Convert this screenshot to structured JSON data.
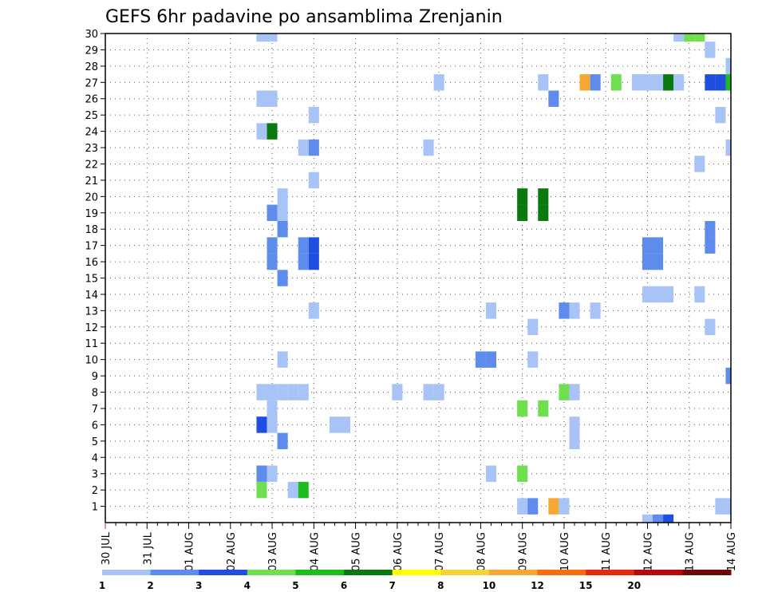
{
  "chart_data": {
    "type": "heatmap",
    "title": "GEFS 6hr padavine po ansamblima Zrenjanin",
    "xlabel": "",
    "ylabel": "",
    "x_ticks": [
      "30 JUL",
      "31 JUL",
      "01 AUG",
      "02 AUG",
      "03 AUG",
      "04 AUG",
      "05 AUG",
      "06 AUG",
      "07 AUG",
      "08 AUG",
      "09 AUG",
      "10 AUG",
      "11 AUG",
      "12 AUG",
      "13 AUG",
      "14 AUG"
    ],
    "x_range_days": [
      0,
      15
    ],
    "x_step_days": 0.25,
    "y_ticks": [
      1,
      2,
      3,
      4,
      5,
      6,
      7,
      8,
      9,
      10,
      11,
      12,
      13,
      14,
      15,
      16,
      17,
      18,
      19,
      20,
      21,
      22,
      23,
      24,
      25,
      26,
      27,
      28,
      29,
      30
    ],
    "y_range": [
      0,
      30
    ],
    "grid": true,
    "colorbar": {
      "position": "bottom",
      "levels": [
        "1",
        "2",
        "3",
        "4",
        "5",
        "6",
        "7",
        "8",
        "10",
        "12",
        "15",
        "20"
      ],
      "colors": [
        "#a8c3f5",
        "#5e8cec",
        "#1f4fe0",
        "#6fdf4f",
        "#1dbb1d",
        "#0a7a10",
        "#ffff00",
        "#f7d434",
        "#f7a832",
        "#f76d12",
        "#e42a0a",
        "#b40a0a",
        "#6a0808"
      ]
    },
    "cells": [
      {
        "d": 3.75,
        "m": 30,
        "c": 1
      },
      {
        "d": 4.0,
        "m": 30,
        "c": 1
      },
      {
        "d": 13.75,
        "m": 30,
        "c": 1
      },
      {
        "d": 14.0,
        "m": 30,
        "c": 4
      },
      {
        "d": 14.25,
        "m": 30,
        "c": 4
      },
      {
        "d": 14.5,
        "m": 29,
        "c": 1
      },
      {
        "d": 15.0,
        "m": 28,
        "c": 1
      },
      {
        "d": 8.0,
        "m": 27,
        "c": 1
      },
      {
        "d": 10.5,
        "m": 27,
        "c": 1
      },
      {
        "d": 11.5,
        "m": 27,
        "c": 9
      },
      {
        "d": 11.75,
        "m": 27,
        "c": 2
      },
      {
        "d": 12.25,
        "m": 27,
        "c": 4
      },
      {
        "d": 12.75,
        "m": 27,
        "c": 1
      },
      {
        "d": 13.0,
        "m": 27,
        "c": 1
      },
      {
        "d": 13.25,
        "m": 27,
        "c": 1
      },
      {
        "d": 13.5,
        "m": 27,
        "c": 6
      },
      {
        "d": 13.75,
        "m": 27,
        "c": 1
      },
      {
        "d": 14.5,
        "m": 27,
        "c": 3
      },
      {
        "d": 14.75,
        "m": 27,
        "c": 3
      },
      {
        "d": 15.0,
        "m": 27,
        "c": 5
      },
      {
        "d": 3.75,
        "m": 26,
        "c": 1
      },
      {
        "d": 4.0,
        "m": 26,
        "c": 1
      },
      {
        "d": 10.75,
        "m": 26,
        "c": 2
      },
      {
        "d": 5.0,
        "m": 25,
        "c": 1
      },
      {
        "d": 14.75,
        "m": 25,
        "c": 1
      },
      {
        "d": 3.75,
        "m": 24,
        "c": 1
      },
      {
        "d": 4.0,
        "m": 24,
        "c": 6
      },
      {
        "d": 4.75,
        "m": 23,
        "c": 1
      },
      {
        "d": 5.0,
        "m": 23,
        "c": 2
      },
      {
        "d": 7.75,
        "m": 23,
        "c": 1
      },
      {
        "d": 15.0,
        "m": 23,
        "c": 1
      },
      {
        "d": 14.25,
        "m": 22,
        "c": 1
      },
      {
        "d": 5.0,
        "m": 21,
        "c": 1
      },
      {
        "d": 4.25,
        "m": 20,
        "c": 1
      },
      {
        "d": 10.0,
        "m": 20,
        "c": 6
      },
      {
        "d": 10.5,
        "m": 20,
        "c": 6
      },
      {
        "d": 4.0,
        "m": 19,
        "c": 2
      },
      {
        "d": 4.25,
        "m": 19,
        "c": 1
      },
      {
        "d": 10.0,
        "m": 19,
        "c": 6
      },
      {
        "d": 10.5,
        "m": 19,
        "c": 6
      },
      {
        "d": 4.25,
        "m": 18,
        "c": 2
      },
      {
        "d": 14.5,
        "m": 18,
        "c": 2
      },
      {
        "d": 4.0,
        "m": 17,
        "c": 2
      },
      {
        "d": 4.75,
        "m": 17,
        "c": 2
      },
      {
        "d": 5.0,
        "m": 17,
        "c": 3
      },
      {
        "d": 13.0,
        "m": 17,
        "c": 2
      },
      {
        "d": 13.25,
        "m": 17,
        "c": 2
      },
      {
        "d": 14.5,
        "m": 17,
        "c": 2
      },
      {
        "d": 4.0,
        "m": 16,
        "c": 2
      },
      {
        "d": 4.75,
        "m": 16,
        "c": 2
      },
      {
        "d": 5.0,
        "m": 16,
        "c": 3
      },
      {
        "d": 13.0,
        "m": 16,
        "c": 2
      },
      {
        "d": 13.25,
        "m": 16,
        "c": 2
      },
      {
        "d": 4.25,
        "m": 15,
        "c": 2
      },
      {
        "d": 13.0,
        "m": 14,
        "c": 1
      },
      {
        "d": 13.25,
        "m": 14,
        "c": 1
      },
      {
        "d": 13.5,
        "m": 14,
        "c": 1
      },
      {
        "d": 14.25,
        "m": 14,
        "c": 1
      },
      {
        "d": 5.0,
        "m": 13,
        "c": 1
      },
      {
        "d": 9.25,
        "m": 13,
        "c": 1
      },
      {
        "d": 11.0,
        "m": 13,
        "c": 2
      },
      {
        "d": 11.25,
        "m": 13,
        "c": 1
      },
      {
        "d": 11.75,
        "m": 13,
        "c": 1
      },
      {
        "d": 10.25,
        "m": 12,
        "c": 1
      },
      {
        "d": 14.5,
        "m": 12,
        "c": 1
      },
      {
        "d": 4.25,
        "m": 10,
        "c": 1
      },
      {
        "d": 9.0,
        "m": 10,
        "c": 2
      },
      {
        "d": 9.25,
        "m": 10,
        "c": 2
      },
      {
        "d": 10.25,
        "m": 10,
        "c": 1
      },
      {
        "d": 15.0,
        "m": 9,
        "c": 2
      },
      {
        "d": 3.75,
        "m": 8,
        "c": 1
      },
      {
        "d": 4.0,
        "m": 8,
        "c": 1
      },
      {
        "d": 4.25,
        "m": 8,
        "c": 1
      },
      {
        "d": 4.5,
        "m": 8,
        "c": 1
      },
      {
        "d": 4.75,
        "m": 8,
        "c": 1
      },
      {
        "d": 7.0,
        "m": 8,
        "c": 1
      },
      {
        "d": 7.75,
        "m": 8,
        "c": 1
      },
      {
        "d": 8.0,
        "m": 8,
        "c": 1
      },
      {
        "d": 11.0,
        "m": 8,
        "c": 4
      },
      {
        "d": 11.25,
        "m": 8,
        "c": 1
      },
      {
        "d": 4.0,
        "m": 7,
        "c": 1
      },
      {
        "d": 10.0,
        "m": 7,
        "c": 4
      },
      {
        "d": 10.5,
        "m": 7,
        "c": 4
      },
      {
        "d": 3.75,
        "m": 6,
        "c": 3
      },
      {
        "d": 4.0,
        "m": 6,
        "c": 1
      },
      {
        "d": 5.5,
        "m": 6,
        "c": 1
      },
      {
        "d": 5.75,
        "m": 6,
        "c": 1
      },
      {
        "d": 11.25,
        "m": 6,
        "c": 1
      },
      {
        "d": 4.25,
        "m": 5,
        "c": 2
      },
      {
        "d": 11.25,
        "m": 5,
        "c": 1
      },
      {
        "d": 3.75,
        "m": 3,
        "c": 2
      },
      {
        "d": 4.0,
        "m": 3,
        "c": 1
      },
      {
        "d": 9.25,
        "m": 3,
        "c": 1
      },
      {
        "d": 10.0,
        "m": 3,
        "c": 4
      },
      {
        "d": 3.75,
        "m": 2,
        "c": 4
      },
      {
        "d": 4.5,
        "m": 2,
        "c": 1
      },
      {
        "d": 4.75,
        "m": 2,
        "c": 5
      },
      {
        "d": 10.0,
        "m": 1,
        "c": 1
      },
      {
        "d": 10.25,
        "m": 1,
        "c": 2
      },
      {
        "d": 10.75,
        "m": 1,
        "c": 9
      },
      {
        "d": 11.0,
        "m": 1,
        "c": 1
      },
      {
        "d": 14.75,
        "m": 1,
        "c": 1
      },
      {
        "d": 15.0,
        "m": 1,
        "c": 1
      },
      {
        "d": 13.0,
        "m": 0,
        "c": 1
      },
      {
        "d": 13.25,
        "m": 0,
        "c": 2
      },
      {
        "d": 13.5,
        "m": 0,
        "c": 3
      }
    ]
  }
}
